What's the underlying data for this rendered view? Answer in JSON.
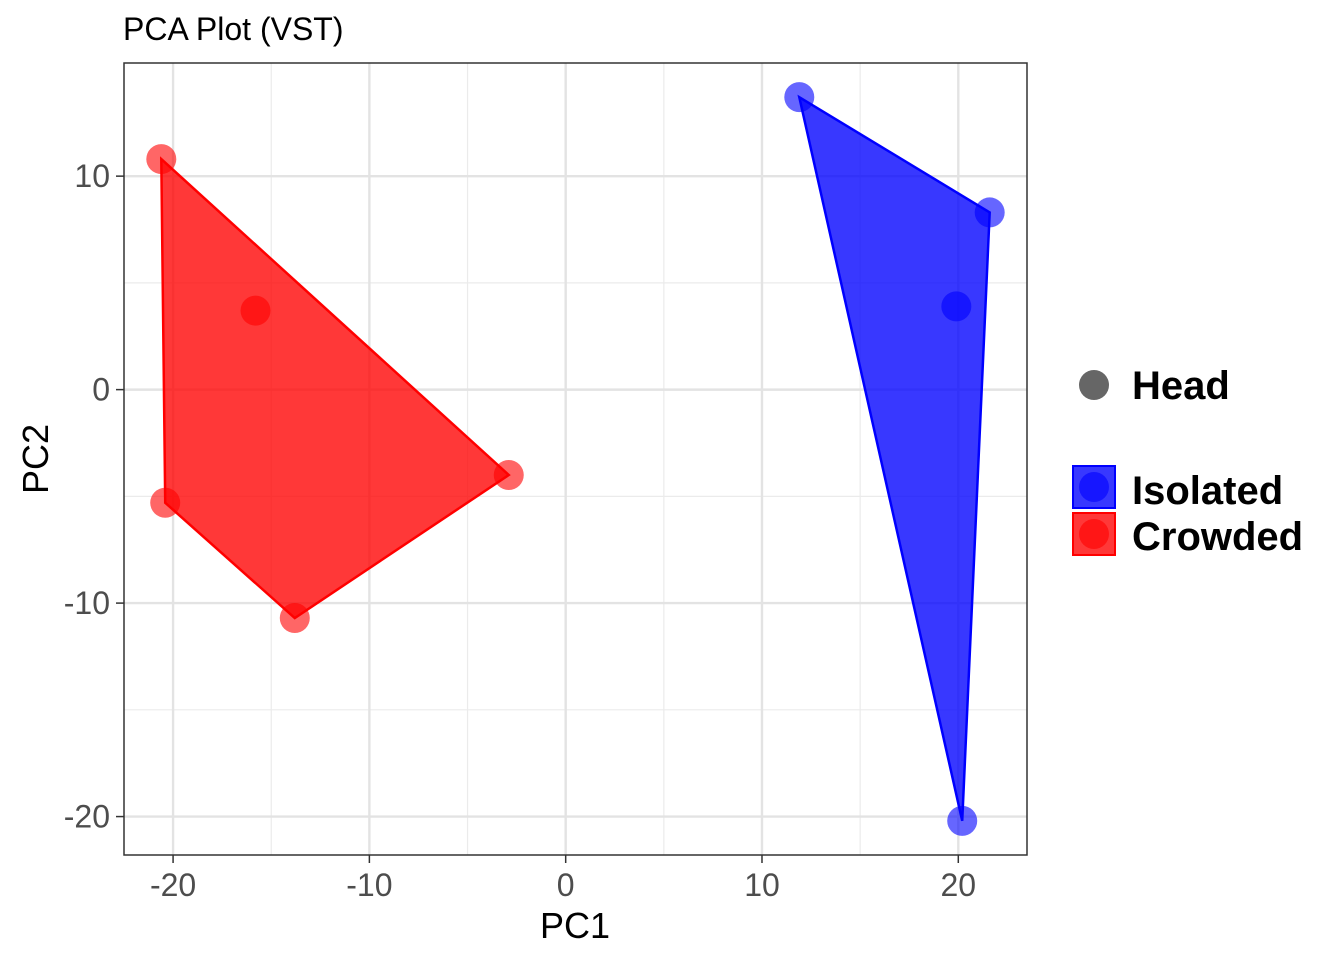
{
  "chart_data": {
    "type": "scatter",
    "title": "PCA Plot (VST)",
    "xlabel": "PC1",
    "ylabel": "PC2",
    "xlim": [
      -22.5,
      23.5
    ],
    "ylim": [
      -21.8,
      15.3
    ],
    "x_ticks": [
      -20,
      -10,
      0,
      10,
      20
    ],
    "x_tick_labels": [
      "-20",
      "-10",
      "0",
      "10",
      "20"
    ],
    "y_ticks": [
      -20,
      -10,
      0,
      10
    ],
    "y_tick_labels": [
      "-20",
      "-10",
      "0",
      "10"
    ],
    "x_minor_ticks": [
      -15,
      -5,
      5,
      15
    ],
    "y_minor_ticks": [
      -15,
      -5,
      5
    ],
    "grid": true,
    "series": [
      {
        "name": "Isolated",
        "color": "#0000ff",
        "points": [
          {
            "x": 11.9,
            "y": 13.7
          },
          {
            "x": 21.6,
            "y": 8.3
          },
          {
            "x": 19.9,
            "y": 3.9
          },
          {
            "x": 20.2,
            "y": -20.2
          }
        ],
        "hull": [
          {
            "x": 11.9,
            "y": 13.7
          },
          {
            "x": 21.6,
            "y": 8.3
          },
          {
            "x": 20.2,
            "y": -20.2
          }
        ]
      },
      {
        "name": "Crowded",
        "color": "#ff0000",
        "points": [
          {
            "x": -20.6,
            "y": 10.8
          },
          {
            "x": -15.8,
            "y": 3.7
          },
          {
            "x": -20.4,
            "y": -5.3
          },
          {
            "x": -13.8,
            "y": -10.7
          },
          {
            "x": -2.9,
            "y": -4.0
          }
        ],
        "hull": [
          {
            "x": -20.6,
            "y": 10.8
          },
          {
            "x": -2.9,
            "y": -4.0
          },
          {
            "x": -13.8,
            "y": -10.7
          },
          {
            "x": -20.4,
            "y": -5.3
          }
        ]
      }
    ],
    "legend": {
      "placement": "right",
      "shape_title": "Head",
      "shape_color": "#666666",
      "entries": [
        {
          "label": "Isolated",
          "color": "#0000ff"
        },
        {
          "label": "Crowded",
          "color": "#ff0000"
        }
      ]
    }
  }
}
